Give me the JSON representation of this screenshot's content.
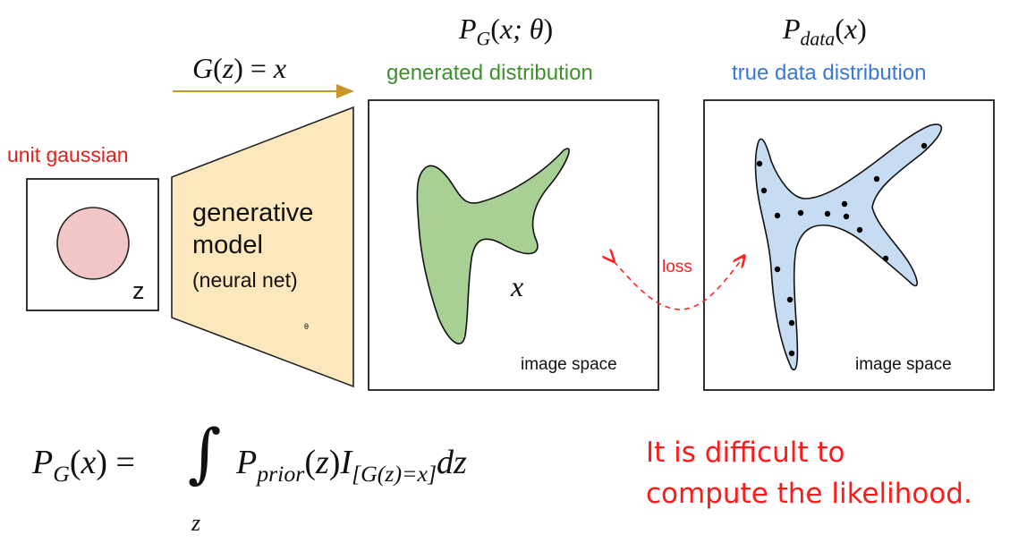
{
  "labels": {
    "unit_gaussian": "unit gaussian",
    "z_label": "z",
    "model_line1": "generative",
    "model_line2": "model",
    "model_line3": "(neural net)",
    "theta_small": "θ",
    "mapping": {
      "lhs": "G",
      "arg": "z",
      "rhs": "x"
    },
    "pg_title": {
      "P": "P",
      "sub": "G",
      "args": "x; θ"
    },
    "pdata_title": {
      "P": "P",
      "sub": "data",
      "args": "x"
    },
    "generated_distribution": "generated distribution",
    "true_data_distribution": "true data distribution",
    "x_sample": "x",
    "loss": "loss",
    "image_space_left": "image space",
    "image_space_right": "image space"
  },
  "formula": {
    "lhs_P": "P",
    "lhs_sub": "G",
    "lhs_arg": "x",
    "integral": "∫",
    "integral_sub": "z",
    "prior_P": "P",
    "prior_sub": "prior",
    "prior_arg": "z",
    "indicator": "I",
    "indicator_sub": "[G(z)=x]",
    "dz": "dz"
  },
  "note": {
    "line1": "It is difficult to",
    "line2": "compute the likelihood."
  },
  "colors": {
    "red_label": "#e0201b",
    "green_label": "#3f8f2d",
    "blue_label": "#3a78d6",
    "arrow": "#c7962b",
    "model_fill": "#fde7bd",
    "gaussian_fill": "#f3c6c8",
    "generated_fill": "#a8cf94",
    "true_fill": "#c6dcf2",
    "loss_arrow": "#ff2222"
  },
  "data_points_count": 15
}
